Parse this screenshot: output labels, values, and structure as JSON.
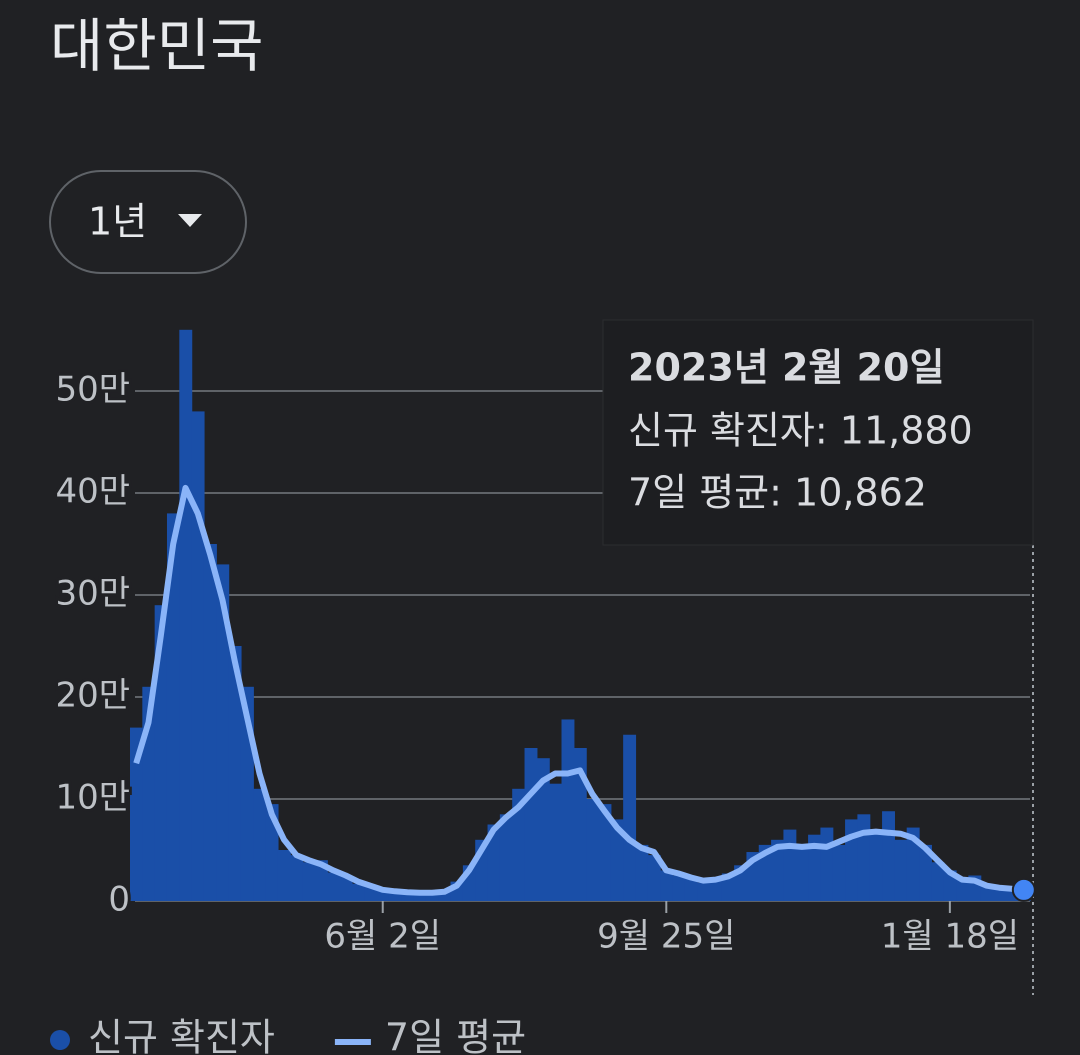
{
  "controls": {
    "range": "1년"
  },
  "chart_data": {
    "type": "bar",
    "title": "대한민국",
    "categories": [
      null,
      null,
      null,
      null,
      null,
      null,
      null,
      null,
      null,
      null,
      null,
      null,
      null,
      null,
      null,
      null,
      null,
      null,
      null,
      null,
      "6월 2일",
      null,
      null,
      null,
      null,
      null,
      null,
      null,
      null,
      null,
      null,
      null,
      null,
      null,
      null,
      null,
      null,
      null,
      null,
      null,
      null,
      null,
      null,
      "9월 25일",
      null,
      null,
      null,
      null,
      null,
      null,
      null,
      null,
      null,
      null,
      null,
      null,
      null,
      null,
      null,
      null,
      null,
      null,
      null,
      null,
      null,
      null,
      "1월 18일",
      null,
      null,
      null,
      null,
      null,
      null
    ],
    "series": [
      {
        "name": "신규 확진자",
        "type": "bar",
        "color": "#1a4fa8",
        "values": [
          170000,
          210000,
          290000,
          380000,
          560000,
          480000,
          350000,
          330000,
          250000,
          210000,
          110000,
          95000,
          50000,
          45000,
          38000,
          40000,
          28000,
          24000,
          17000,
          14000,
          12000,
          10000,
          9000,
          8500,
          7500,
          9500,
          19000,
          35000,
          60000,
          75000,
          85000,
          110000,
          150000,
          140000,
          115000,
          178000,
          150000,
          100000,
          95000,
          80000,
          163000,
          55000,
          45000,
          30000,
          25000,
          22000,
          18000,
          23000,
          27000,
          35000,
          48000,
          55000,
          60000,
          70000,
          55000,
          65000,
          72000,
          55000,
          80000,
          85000,
          70000,
          88000,
          60000,
          72000,
          55000,
          38000,
          30000,
          22000,
          25000,
          16000,
          12000,
          13000,
          11880
        ]
      },
      {
        "name": "7일 평균",
        "type": "line",
        "color": "#8ab4f8",
        "values": [
          135000,
          175000,
          260000,
          350000,
          405000,
          380000,
          340000,
          295000,
          235000,
          180000,
          125000,
          85000,
          60000,
          45000,
          40000,
          36000,
          30000,
          25000,
          19000,
          15000,
          11000,
          9500,
          8500,
          8000,
          8000,
          9000,
          15000,
          30000,
          50000,
          70000,
          82000,
          92000,
          105000,
          118000,
          125000,
          125000,
          128000,
          105000,
          88000,
          72000,
          60000,
          52000,
          48000,
          30000,
          27000,
          23000,
          20000,
          21000,
          24000,
          30000,
          40000,
          47000,
          53000,
          54000,
          53000,
          54000,
          53000,
          58000,
          63000,
          67000,
          68000,
          67000,
          66000,
          62000,
          52000,
          40000,
          28000,
          21000,
          20000,
          15000,
          13000,
          12000,
          10862
        ]
      }
    ],
    "ylim": [
      0,
      600000
    ],
    "yticks": [
      {
        "value": 0,
        "label": "0"
      },
      {
        "value": 100000,
        "label": "10만"
      },
      {
        "value": 200000,
        "label": "20만"
      },
      {
        "value": 300000,
        "label": "30만"
      },
      {
        "value": 400000,
        "label": "40만"
      },
      {
        "value": 500000,
        "label": "50만"
      }
    ],
    "grid": true,
    "tooltip": {
      "title": "2023년 2월 20일",
      "lines": [
        "신규 확진자: 11,880",
        "7일 평균: 10,862"
      ]
    }
  }
}
